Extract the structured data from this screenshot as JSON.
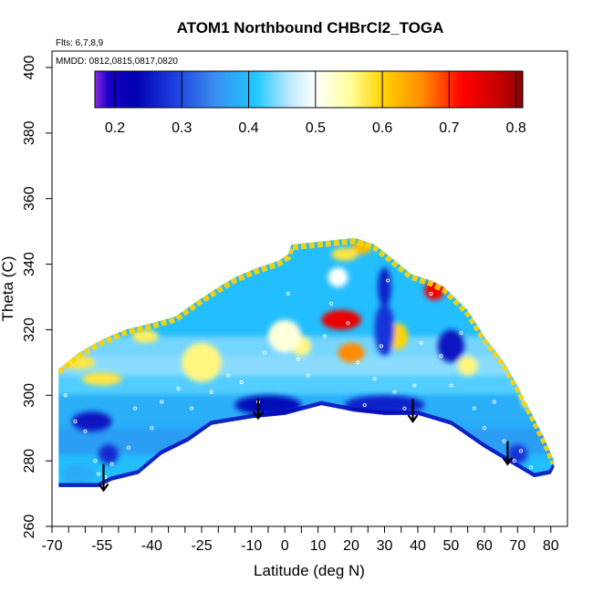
{
  "chart_data": {
    "type": "heatmap",
    "title": "ATOM1 Northbound CHBrCl2_TOGA",
    "flights_label": "Flts: 6,7,8,9",
    "dates_label": "MMDD: 0812,0815,0817,0820",
    "xlabel": "Latitude (deg N)",
    "ylabel": "Theta (C)",
    "xlim": [
      -70,
      85
    ],
    "ylim": [
      260,
      405
    ],
    "x_ticks": [
      "-70",
      "-55",
      "-40",
      "-25",
      "-10",
      "0",
      "10",
      "20",
      "30",
      "40",
      "50",
      "60",
      "70",
      "80"
    ],
    "x_tick_values": [
      -70,
      -55,
      -40,
      -25,
      -10,
      0,
      10,
      20,
      30,
      40,
      50,
      60,
      70,
      80
    ],
    "x_minor_ticks": [
      -65,
      -60,
      -50,
      -45,
      -35,
      -30,
      -20,
      -15,
      -5,
      5,
      15,
      25,
      35,
      45,
      55,
      65,
      75
    ],
    "y_ticks": [
      "260",
      "280",
      "300",
      "320",
      "340",
      "360",
      "380",
      "400"
    ],
    "y_tick_values": [
      260,
      280,
      300,
      320,
      340,
      360,
      380,
      400
    ],
    "colorbar": {
      "range": [
        0.17,
        0.81
      ],
      "tick_labels": [
        "0.2",
        "0.3",
        "0.4",
        "0.5",
        "0.6",
        "0.7",
        "0.8"
      ],
      "tick_values": [
        0.2,
        0.3,
        0.4,
        0.5,
        0.6,
        0.7,
        0.8
      ],
      "stops": [
        [
          0.17,
          "#8a2be2"
        ],
        [
          0.19,
          "#1a00c8"
        ],
        [
          0.23,
          "#0000b0"
        ],
        [
          0.29,
          "#1e40e0"
        ],
        [
          0.35,
          "#3a8ef0"
        ],
        [
          0.41,
          "#1ec8ff"
        ],
        [
          0.46,
          "#b8e8ff"
        ],
        [
          0.5,
          "#ffffff"
        ],
        [
          0.55,
          "#ffffa0"
        ],
        [
          0.6,
          "#ffd400"
        ],
        [
          0.66,
          "#ff8c00"
        ],
        [
          0.72,
          "#ff0000"
        ],
        [
          0.78,
          "#c00000"
        ],
        [
          0.81,
          "#8b0000"
        ]
      ]
    },
    "field_boundary": {
      "top": [
        [
          -68,
          308
        ],
        [
          -62,
          313
        ],
        [
          -55,
          317
        ],
        [
          -48,
          320
        ],
        [
          -40,
          322
        ],
        [
          -33,
          324
        ],
        [
          -26,
          329
        ],
        [
          -20,
          333
        ],
        [
          -15,
          336
        ],
        [
          -8,
          339
        ],
        [
          -2,
          341
        ],
        [
          1,
          343
        ],
        [
          2,
          346
        ],
        [
          21,
          348
        ],
        [
          27,
          346
        ],
        [
          32,
          342
        ],
        [
          38,
          337
        ],
        [
          44,
          335
        ],
        [
          48,
          333
        ],
        [
          55,
          326
        ],
        [
          60,
          318
        ],
        [
          66,
          310
        ],
        [
          70,
          303
        ],
        [
          74,
          295
        ],
        [
          78,
          287
        ],
        [
          81,
          280
        ]
      ],
      "bottom": [
        [
          81,
          278
        ],
        [
          80,
          276
        ],
        [
          75,
          275
        ],
        [
          60,
          284
        ],
        [
          50,
          291
        ],
        [
          40,
          294
        ],
        [
          30,
          294
        ],
        [
          21,
          295
        ],
        [
          11,
          297
        ],
        [
          0,
          294
        ],
        [
          -10,
          293
        ],
        [
          -22,
          291
        ],
        [
          -29,
          286
        ],
        [
          -37,
          282
        ],
        [
          -44,
          276
        ],
        [
          -52,
          274
        ],
        [
          -56,
          272
        ],
        [
          -68,
          272
        ]
      ]
    },
    "anomalies": [
      {
        "lat": 17,
        "theta": 323,
        "value": 0.74,
        "rx": 6,
        "ry": 3
      },
      {
        "lat": 45,
        "theta": 332,
        "value": 0.73,
        "rx": 3,
        "ry": 3
      },
      {
        "lat": 20,
        "theta": 313,
        "value": 0.66,
        "rx": 4,
        "ry": 3
      },
      {
        "lat": 23,
        "theta": 345,
        "value": 0.62,
        "rx": 3,
        "ry": 2
      },
      {
        "lat": 18,
        "theta": 343,
        "value": 0.58,
        "rx": 4,
        "ry": 2
      },
      {
        "lat": 34,
        "theta": 318,
        "value": 0.6,
        "rx": 3,
        "ry": 4
      },
      {
        "lat": 5,
        "theta": 315,
        "value": 0.56,
        "rx": 3,
        "ry": 3
      },
      {
        "lat": -42,
        "theta": 318,
        "value": 0.57,
        "rx": 4,
        "ry": 2
      },
      {
        "lat": -25,
        "theta": 310,
        "value": 0.56,
        "rx": 6,
        "ry": 6
      },
      {
        "lat": 55,
        "theta": 309,
        "value": 0.56,
        "rx": 3,
        "ry": 3
      },
      {
        "lat": 73,
        "theta": 300,
        "value": 0.55,
        "rx": 2,
        "ry": 4
      },
      {
        "lat": -62,
        "theta": 310,
        "value": 0.58,
        "rx": 5,
        "ry": 2
      },
      {
        "lat": -55,
        "theta": 305,
        "value": 0.58,
        "rx": 6,
        "ry": 2
      },
      {
        "lat": 0,
        "theta": 318,
        "value": 0.52,
        "rx": 5,
        "ry": 5
      },
      {
        "lat": 30,
        "theta": 333,
        "value": 0.26,
        "rx": 2,
        "ry": 6
      },
      {
        "lat": 30,
        "theta": 320,
        "value": 0.28,
        "rx": 3,
        "ry": 8
      },
      {
        "lat": -5,
        "theta": 297,
        "value": 0.24,
        "rx": 10,
        "ry": 3
      },
      {
        "lat": 30,
        "theta": 297,
        "value": 0.26,
        "rx": 12,
        "ry": 3
      },
      {
        "lat": -58,
        "theta": 292,
        "value": 0.25,
        "rx": 6,
        "ry": 3
      },
      {
        "lat": -53,
        "theta": 282,
        "value": 0.27,
        "rx": 3,
        "ry": 3
      },
      {
        "lat": 50,
        "theta": 315,
        "value": 0.25,
        "rx": 4,
        "ry": 5
      },
      {
        "lat": 70,
        "theta": 282,
        "value": 0.28,
        "rx": 3,
        "ry": 3
      },
      {
        "lat": -62,
        "theta": 276,
        "value": 0.38,
        "rx": 5,
        "ry": 3
      },
      {
        "lat": 16,
        "theta": 336,
        "value": 0.5,
        "rx": 3,
        "ry": 3
      }
    ],
    "sample_points": [
      [
        -66,
        300
      ],
      [
        -63,
        292
      ],
      [
        -60,
        289
      ],
      [
        -57,
        280
      ],
      [
        -56,
        276
      ],
      [
        -54,
        275
      ],
      [
        -52,
        279
      ],
      [
        -47,
        284
      ],
      [
        -45,
        296
      ],
      [
        -40,
        290
      ],
      [
        -37,
        298
      ],
      [
        -32,
        302
      ],
      [
        -28,
        296
      ],
      [
        -22,
        301
      ],
      [
        -17,
        306
      ],
      [
        -13,
        304
      ],
      [
        -8,
        298
      ],
      [
        -6,
        313
      ],
      [
        -1,
        319
      ],
      [
        1,
        331
      ],
      [
        4,
        311
      ],
      [
        7,
        306
      ],
      [
        12,
        318
      ],
      [
        14,
        328
      ],
      [
        19,
        322
      ],
      [
        22,
        310
      ],
      [
        24,
        297
      ],
      [
        27,
        305
      ],
      [
        29,
        315
      ],
      [
        31,
        335
      ],
      [
        33,
        301
      ],
      [
        36,
        296
      ],
      [
        39,
        303
      ],
      [
        41,
        316
      ],
      [
        44,
        331
      ],
      [
        47,
        312
      ],
      [
        50,
        303
      ],
      [
        53,
        319
      ],
      [
        57,
        296
      ],
      [
        60,
        290
      ],
      [
        63,
        298
      ],
      [
        66,
        286
      ],
      [
        69,
        280
      ],
      [
        71,
        283
      ],
      [
        74,
        278
      ],
      [
        76,
        299
      ]
    ],
    "arrows": [
      {
        "lat": -54.5,
        "theta_top": 279,
        "theta_bottom": 271
      },
      {
        "lat": -8,
        "theta_top": 299,
        "theta_bottom": 293
      },
      {
        "lat": 38.5,
        "theta_top": 299,
        "theta_bottom": 292
      },
      {
        "lat": 67,
        "theta_top": 286,
        "theta_bottom": 279
      }
    ]
  }
}
